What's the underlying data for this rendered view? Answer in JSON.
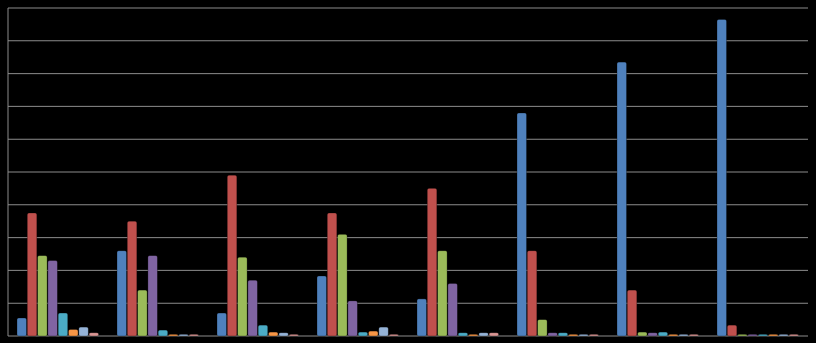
{
  "chart_data": {
    "type": "bar",
    "grid": true,
    "ylim": [
      0,
      10
    ],
    "yticks": [
      0,
      1,
      2,
      3,
      4,
      5,
      6,
      7,
      8,
      9,
      10
    ],
    "series": [
      {
        "color": "#4f81bd",
        "values": [
          0.55,
          2.6,
          0.7,
          1.83,
          1.13,
          6.8,
          8.35,
          9.65
        ]
      },
      {
        "color": "#c0504d",
        "values": [
          3.75,
          3.5,
          4.9,
          3.75,
          4.5,
          2.6,
          1.4,
          0.33
        ]
      },
      {
        "color": "#9bbb59",
        "values": [
          2.45,
          1.4,
          2.4,
          3.1,
          2.6,
          0.5,
          0.12,
          0.05
        ]
      },
      {
        "color": "#8064a2",
        "values": [
          2.3,
          2.45,
          1.7,
          1.07,
          1.6,
          0.1,
          0.1,
          0.05
        ]
      },
      {
        "color": "#4bacc6",
        "values": [
          0.7,
          0.18,
          0.33,
          0.12,
          0.1,
          0.1,
          0.12,
          0.05
        ]
      },
      {
        "color": "#f79646",
        "values": [
          0.2,
          0.05,
          0.12,
          0.15,
          0.05,
          0.05,
          0.05,
          0.05
        ]
      },
      {
        "color": "#95b3d7",
        "values": [
          0.27,
          0.05,
          0.1,
          0.27,
          0.1,
          0.05,
          0.05,
          0.05
        ]
      },
      {
        "color": "#da9694",
        "values": [
          0.1,
          0.05,
          0.05,
          0.05,
          0.1,
          0.05,
          0.05,
          0.05
        ]
      }
    ]
  }
}
